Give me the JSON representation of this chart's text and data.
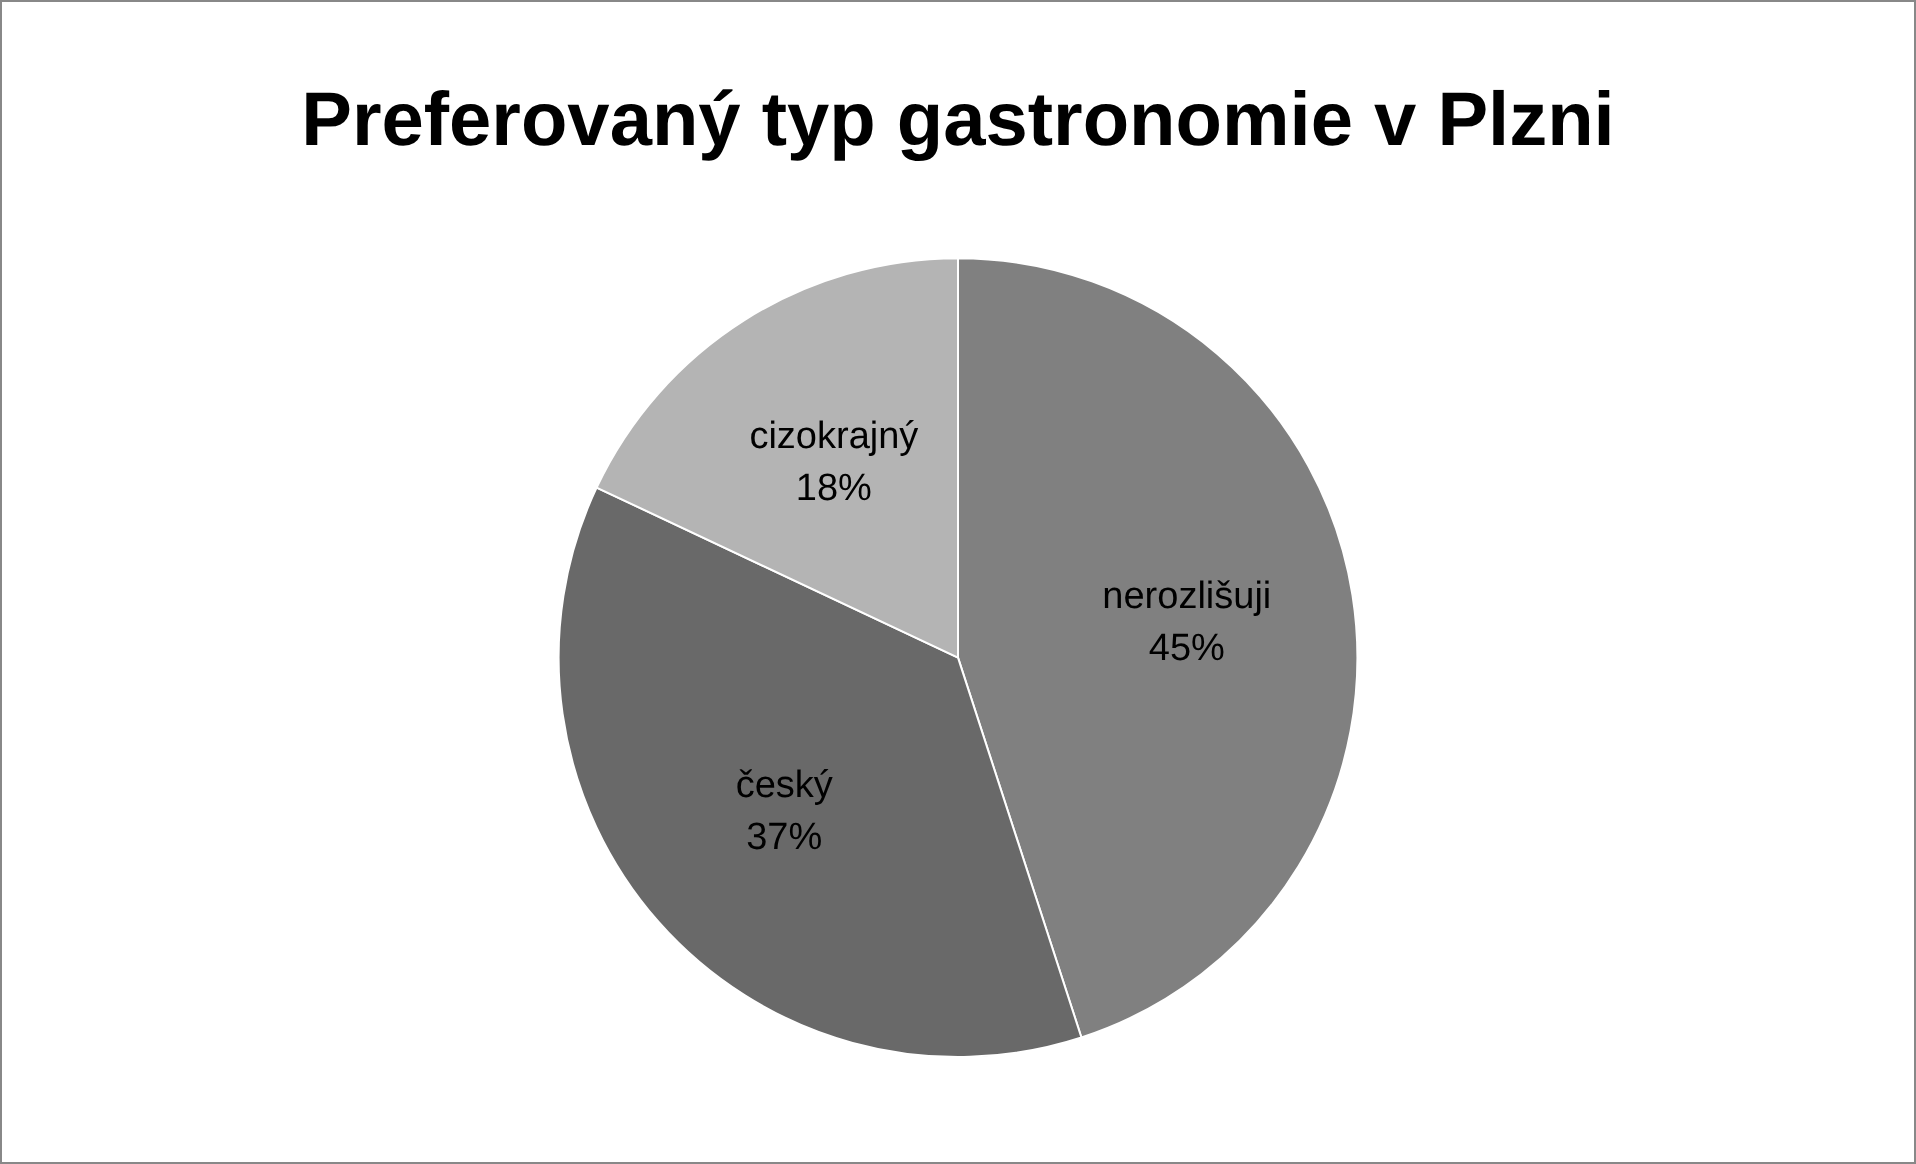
{
  "chart_data": {
    "type": "pie",
    "title": "Preferovaný typ gastronomie v Plzni",
    "categories": [
      "nerozlišuji",
      "český",
      "cizokrajný"
    ],
    "values": [
      45,
      37,
      18
    ],
    "value_labels": [
      "45%",
      "37%",
      "18%"
    ],
    "colors": [
      "#808080",
      "#696969",
      "#b4b4b4"
    ],
    "legend": false
  }
}
